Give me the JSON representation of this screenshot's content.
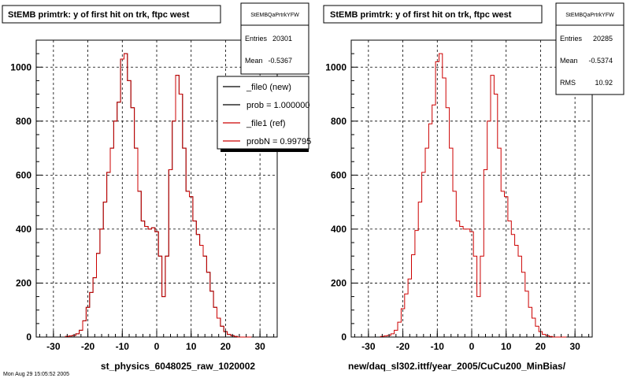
{
  "chart_data": [
    {
      "type": "histogram",
      "title": "StEMB primtrk: y of first hit on trk, ftpc west",
      "xlabel": "st_physics_6048025_raw_1020002",
      "xlim": [
        -35,
        35
      ],
      "ylim": [
        0,
        1100
      ],
      "xticks": [
        -30,
        -20,
        -10,
        0,
        10,
        20,
        30
      ],
      "yticks": [
        0,
        200,
        400,
        600,
        800,
        1000
      ],
      "grid": true,
      "stats": {
        "name": "StEMBQaPrtrkYFW",
        "entries_label": "Entries",
        "entries": "20301",
        "mean_label": "Mean",
        "mean": "-0.5367"
      },
      "legend": {
        "placement": "top-right",
        "entries": [
          "_file0 (new)",
          "prob = 1.000000",
          "_file1 (ref)",
          "probN = 0.99795"
        ],
        "colors": [
          "#000000",
          "#000000",
          "#cc0000",
          "#cc0000"
        ]
      },
      "series": [
        {
          "name": "_file0 (new)",
          "color": "#000000"
        },
        {
          "name": "_file1 (ref)",
          "color": "#cc0000"
        }
      ],
      "x": [
        -26,
        -25,
        -24,
        -23,
        -22,
        -21,
        -20,
        -19,
        -18,
        -17,
        -16,
        -15,
        -14,
        -13,
        -12,
        -11,
        -10,
        -9,
        -8,
        -7,
        -6,
        -5,
        -4,
        -3,
        -2,
        -1,
        0,
        1,
        2,
        3,
        4,
        5,
        6,
        7,
        8,
        9,
        10,
        11,
        12,
        13,
        14,
        15,
        16,
        17,
        18,
        19,
        20,
        21,
        22,
        23,
        24,
        25,
        26,
        27
      ],
      "values": [
        2,
        4,
        6,
        12,
        25,
        60,
        110,
        165,
        220,
        310,
        400,
        500,
        610,
        700,
        800,
        870,
        1030,
        1050,
        950,
        850,
        700,
        540,
        430,
        410,
        400,
        405,
        390,
        300,
        150,
        300,
        620,
        800,
        970,
        900,
        700,
        540,
        520,
        430,
        380,
        340,
        300,
        240,
        170,
        110,
        70,
        40,
        20,
        10,
        5,
        2,
        0,
        0,
        0,
        0
      ]
    },
    {
      "type": "histogram",
      "title": "StEMB primtrk: y of first hit on trk, ftpc west",
      "xlabel": "new/daq_sl302.ittf/year_2005/CuCu200_MinBias/",
      "xlim": [
        -35,
        35
      ],
      "ylim": [
        0,
        1100
      ],
      "xticks": [
        -30,
        -20,
        -10,
        0,
        10,
        20,
        30
      ],
      "yticks": [
        0,
        200,
        400,
        600,
        800,
        1000
      ],
      "grid": true,
      "stats": {
        "name": "StEMBQaPrtrkYFW",
        "entries_label": "Entries",
        "entries": "20285",
        "mean_label": "Mean",
        "mean": "-0.5374",
        "rms_label": "RMS",
        "rms": "10.92"
      },
      "series": [
        {
          "name": "",
          "color": "#cc0000"
        }
      ],
      "x": [
        -26,
        -25,
        -24,
        -23,
        -22,
        -21,
        -20,
        -19,
        -18,
        -17,
        -16,
        -15,
        -14,
        -13,
        -12,
        -11,
        -10,
        -9,
        -8,
        -7,
        -6,
        -5,
        -4,
        -3,
        -2,
        -1,
        0,
        1,
        2,
        3,
        4,
        5,
        6,
        7,
        8,
        9,
        10,
        11,
        12,
        13,
        14,
        15,
        16,
        17,
        18,
        19,
        20,
        21,
        22,
        23,
        24,
        25,
        26,
        27
      ],
      "values": [
        2,
        4,
        6,
        12,
        25,
        55,
        105,
        160,
        215,
        305,
        395,
        500,
        610,
        700,
        790,
        860,
        1020,
        1050,
        960,
        850,
        700,
        540,
        430,
        410,
        400,
        400,
        390,
        300,
        150,
        300,
        620,
        800,
        970,
        900,
        700,
        540,
        520,
        430,
        380,
        340,
        300,
        240,
        170,
        110,
        70,
        40,
        20,
        10,
        5,
        2,
        0,
        0,
        0,
        0
      ]
    }
  ],
  "footer_text": "Mon Aug 29 15:05:52 2005"
}
